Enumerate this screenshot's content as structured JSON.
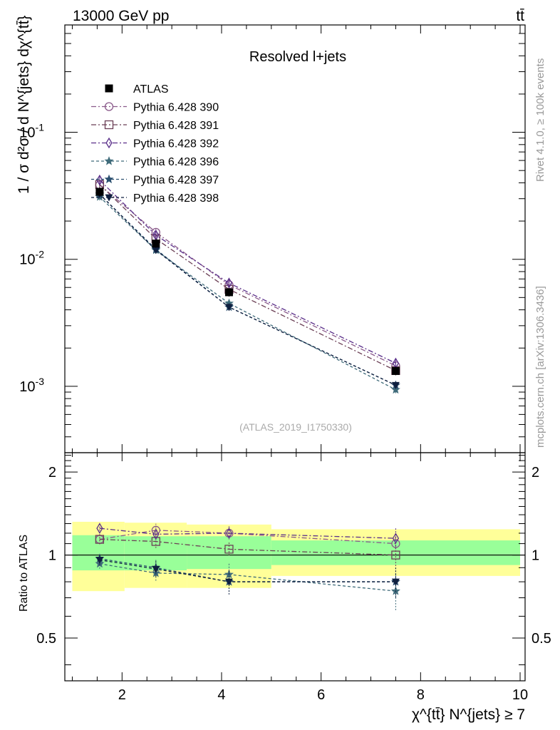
{
  "chart_data": {
    "type": "line",
    "header_left": "13000 GeV pp",
    "header_right": "tt̄",
    "title": "Resolved l+jets",
    "watermark": "(ATLAS_2019_I1750330)",
    "side_text_top": "Rivet 4.1.0, ≥ 100k events",
    "side_text_bottom": "mcplots.cern.ch [arXiv:1306.3436]",
    "ylabel_main": "1 / σ d²σ / d N^{jets} dχ^{tt̄}",
    "ylabel_ratio": "Ratio to ATLAS",
    "xlabel": "χ^{tt̄} N^{jets} ≥ 7",
    "xlim": [
      0.85,
      10.1
    ],
    "ylim_main": [
      0.0003,
      0.7
    ],
    "ylim_ratio": [
      0.35,
      2.35
    ],
    "x_ticks": [
      "2",
      "4",
      "6",
      "8",
      "10"
    ],
    "x_tick_values": [
      2,
      4,
      6,
      8,
      10
    ],
    "y_main_ticks": [
      "10^{-3}",
      "10^{-2}",
      "10^{-1}"
    ],
    "y_main_tick_values": [
      0.001,
      0.01,
      0.1
    ],
    "y_ratio_ticks": [
      "0.5",
      "1",
      "2"
    ],
    "y_ratio_tick_values": [
      0.5,
      1,
      2
    ],
    "bins": [
      [
        1,
        2.05
      ],
      [
        2.05,
        3.3
      ],
      [
        3.3,
        5
      ],
      [
        5,
        10
      ]
    ],
    "x": [
      1.55,
      2.68,
      4.15,
      7.5
    ],
    "data": {
      "name": "ATLAS",
      "values": [
        0.034,
        0.0133,
        0.0055,
        0.00132
      ],
      "band_inner": [
        [
          0.88,
          1.18
        ],
        [
          0.88,
          1.17
        ],
        [
          0.89,
          1.17
        ],
        [
          0.92,
          1.13
        ]
      ],
      "band_outer": [
        [
          0.74,
          1.32
        ],
        [
          0.76,
          1.31
        ],
        [
          0.76,
          1.29
        ],
        [
          0.84,
          1.24
        ]
      ]
    },
    "series": [
      {
        "name": "Pythia 6.428 390",
        "marker": "circle",
        "color": "#8a5a8a",
        "dash": "7,3,2,3",
        "values": [
          0.0385,
          0.0163,
          0.0063,
          0.00145
        ],
        "ratio": [
          1.14,
          1.23,
          1.2,
          1.1
        ],
        "err": [
          0.05,
          0.07,
          0.06,
          0.1
        ]
      },
      {
        "name": "Pythia 6.428 391",
        "marker": "square",
        "color": "#6b3f55",
        "dash": "7,3,2,3",
        "values": [
          0.0388,
          0.0145,
          0.0058,
          0.00133
        ],
        "ratio": [
          1.14,
          1.12,
          1.05,
          1.0
        ],
        "err": [
          0.05,
          0.06,
          0.06,
          0.09
        ]
      },
      {
        "name": "Pythia 6.428 392",
        "marker": "diamond",
        "color": "#5a2f8a",
        "dash": "7,3,2,3",
        "values": [
          0.042,
          0.0155,
          0.0065,
          0.00152
        ],
        "ratio": [
          1.25,
          1.19,
          1.2,
          1.15
        ],
        "err": [
          0.05,
          0.06,
          0.07,
          0.1
        ]
      },
      {
        "name": "Pythia 6.428 396",
        "marker": "star",
        "color": "#3f6b7a",
        "dash": "4,3",
        "values": [
          0.031,
          0.0118,
          0.0045,
          0.00094
        ],
        "ratio": [
          0.93,
          0.86,
          0.85,
          0.74
        ],
        "err": [
          0.04,
          0.06,
          0.08,
          0.11
        ]
      },
      {
        "name": "Pythia 6.428 397",
        "marker": "star",
        "color": "#2a4f6f",
        "dash": "4,3",
        "values": [
          0.0325,
          0.012,
          0.0042,
          0.00102
        ],
        "ratio": [
          0.97,
          0.9,
          0.8,
          0.8
        ],
        "err": [
          0.04,
          0.06,
          0.08,
          0.1
        ]
      },
      {
        "name": "Pythia 6.428 398",
        "marker": "triangle-down",
        "color": "#0f1f3f",
        "dash": "4,3",
        "values": [
          0.0325,
          0.0118,
          0.0042,
          0.00102
        ],
        "ratio": [
          0.96,
          0.89,
          0.8,
          0.8
        ],
        "err": [
          0.04,
          0.06,
          0.08,
          0.1
        ]
      }
    ]
  }
}
